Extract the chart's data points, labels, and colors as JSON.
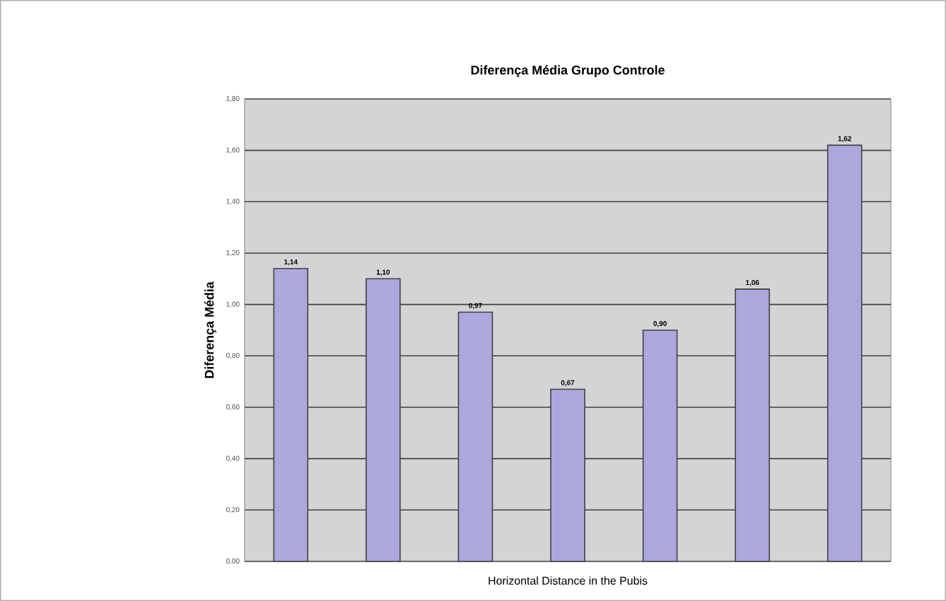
{
  "chart_data": {
    "type": "bar",
    "title": "Diferença Média Grupo Controle",
    "xlabel": "Horizontal Distance in the Pubis",
    "ylabel": "Diferença Média",
    "categories": [
      null,
      null,
      null,
      null,
      null,
      null,
      null
    ],
    "values": [
      1.14,
      1.1,
      0.97,
      0.67,
      0.9,
      1.06,
      1.62
    ],
    "value_labels": [
      "1,14",
      "1,10",
      "0,97",
      "0,67",
      "0,90",
      "1,06",
      "1,62"
    ],
    "color": "#aca8de",
    "ylim": [
      0,
      1.8
    ],
    "yticks": [
      {
        "value": 0,
        "label": "0,00"
      },
      {
        "value": 0.2,
        "label": "0,20"
      },
      {
        "value": 0.4,
        "label": "0,40"
      },
      {
        "value": 0.6,
        "label": "0,60"
      },
      {
        "value": 0.8,
        "label": "0,80"
      },
      {
        "value": 1.0,
        "label": "1,00"
      },
      {
        "value": 1.2,
        "label": "1,20"
      },
      {
        "value": 1.4,
        "label": "1,40"
      },
      {
        "value": 1.6,
        "label": "1,60"
      },
      {
        "value": 1.8,
        "label": "1,80"
      }
    ],
    "grid": "y"
  }
}
